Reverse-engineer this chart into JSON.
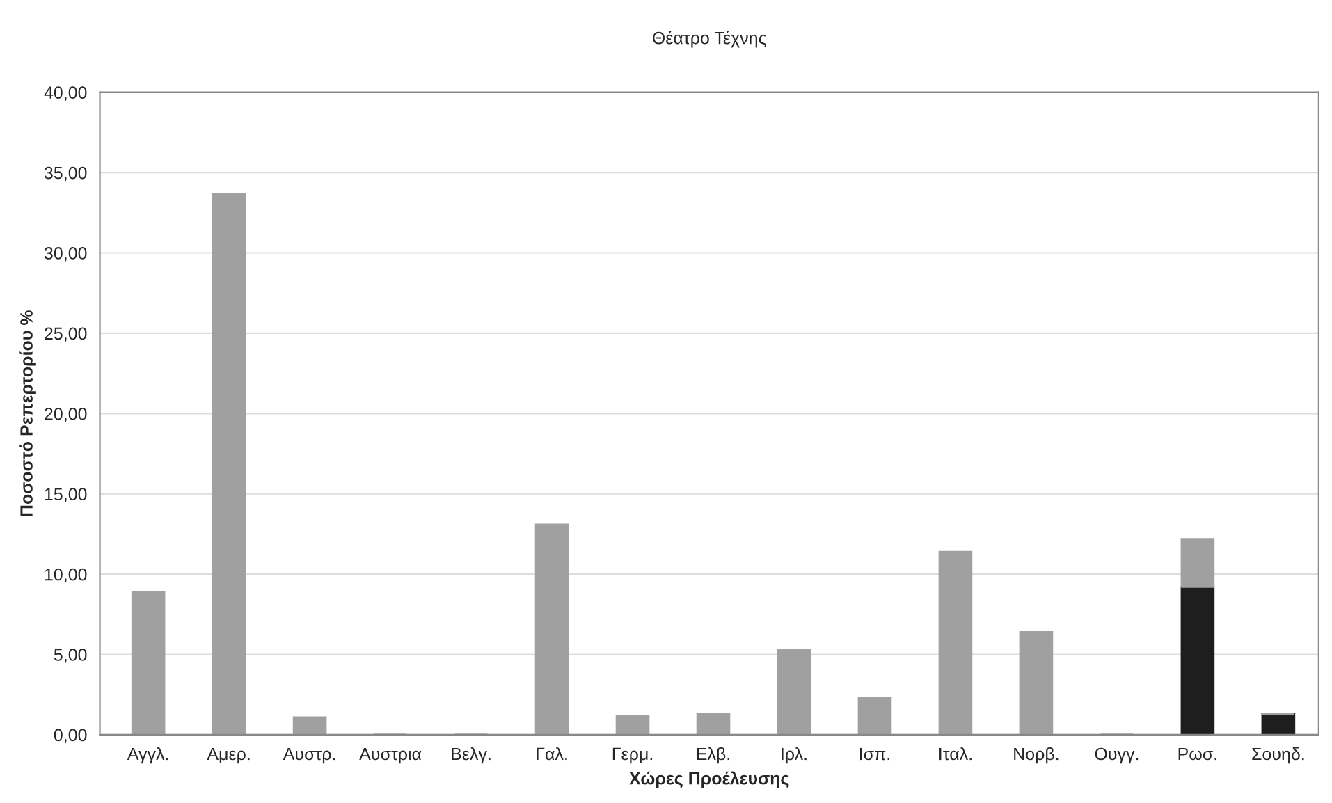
{
  "chart_data": {
    "type": "bar",
    "title": "Θέατρο Τέχνης",
    "xlabel": "Χώρες Προέλευσης",
    "ylabel": "Ποσοστό Ρεπερτορίου %",
    "categories": [
      "Αγγλ.",
      "Αμερ.",
      "Αυστρ.",
      "Αυστρια",
      "Βελγ.",
      "Γαλ.",
      "Γερμ.",
      "Ελβ.",
      "Ιρλ.",
      "Ισπ.",
      "Ιταλ.",
      "Νορβ.",
      "Ουγγ.",
      "Ρωσ.",
      "Σουηδ."
    ],
    "stacked": true,
    "series": [
      {
        "color": "#1e1e1e",
        "values": [
          0,
          0,
          0,
          0,
          0,
          0,
          0,
          0,
          0,
          0,
          0,
          0,
          0,
          9.2,
          1.3
        ]
      },
      {
        "color": "#a0a0a0",
        "values": [
          8.9,
          33.7,
          1.1,
          0,
          0,
          13.1,
          1.2,
          1.3,
          5.3,
          2.3,
          11.4,
          6.4,
          0,
          3.0,
          0
        ]
      }
    ],
    "ylim": [
      0,
      40
    ],
    "yticks": [
      {
        "value": 0,
        "label": "0,00"
      },
      {
        "value": 5,
        "label": "5,00"
      },
      {
        "value": 10,
        "label": "10,00"
      },
      {
        "value": 15,
        "label": "15,00"
      },
      {
        "value": 20,
        "label": "20,00"
      },
      {
        "value": 25,
        "label": "25,00"
      },
      {
        "value": 30,
        "label": "30,00"
      },
      {
        "value": 35,
        "label": "35,00"
      },
      {
        "value": 40,
        "label": "40,00"
      }
    ],
    "grid": "y",
    "legend": false
  }
}
